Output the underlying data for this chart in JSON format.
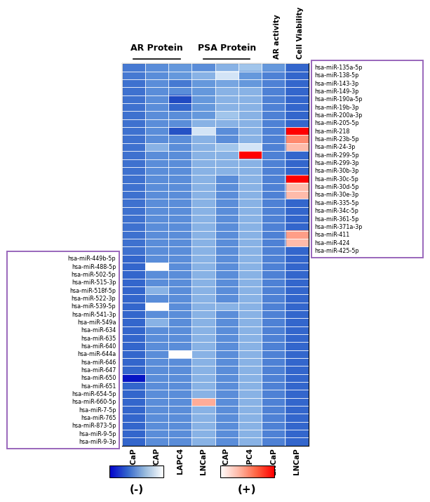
{
  "col_labels": [
    "LNCaP",
    "VCAP",
    "LAPC4",
    "LNCaP",
    "VCAP",
    "LAPC4",
    "LNCaP",
    "LNCaP"
  ],
  "right_mirnas": [
    "hsa-miR-135a-5p",
    "hsa-miR-138-5p",
    "hsa-miR-143-3p",
    "hsa-miR-149-3p",
    "hsa-miR-190a-5p",
    "hsa-miR-19b-3p",
    "hsa-miR-200a-3p",
    "hsa-miR-205-5p",
    "hsa-miR-218",
    "hsa-miR-23b-5p",
    "hsa-miR-24-3p",
    "hsa-miR-299-5p",
    "hsa-miR-299-3p",
    "hsa-miR-30b-3p",
    "hsa-miR-30c-5p",
    "hsa-miR-30d-5p",
    "hsa-miR-30e-3p",
    "hsa-miR-335-5p",
    "hsa-miR-34c-5p",
    "hsa-miR-361-5p",
    "hsa-miR-371a-3p",
    "hsa-miR-411",
    "hsa-miR-424",
    "hsa-miR-425-5p"
  ],
  "left_mirnas": [
    "hsa-miR-449b-5p",
    "hsa-miR-488-5p",
    "hsa-miR-502-5p",
    "hsa-miR-515-3p",
    "hsa-miR-518f-5p",
    "hsa-miR-522-3p",
    "hsa-miR-539-5p",
    "hsa-miR-541-3p",
    "hsa-miR-549a",
    "hsa-miR-634",
    "hsa-miR-635",
    "hsa-miR-640",
    "hsa-miR-644a",
    "hsa-miR-646",
    "hsa-miR-647",
    "hsa-miR-650",
    "hsa-miR-651",
    "hsa-miR-654-5p",
    "hsa-miR-660-5p",
    "hsa-miR-7-5p",
    "hsa-miR-765",
    "hsa-miR-873-5p",
    "hsa-miR-9-5p",
    "hsa-miR-9-3p"
  ],
  "matrix": [
    [
      0.3,
      0.35,
      0.38,
      0.35,
      0.42,
      0.45,
      0.38,
      0.25
    ],
    [
      0.3,
      0.35,
      0.38,
      0.42,
      0.48,
      0.38,
      0.32,
      0.25
    ],
    [
      0.28,
      0.35,
      0.3,
      0.38,
      0.4,
      0.38,
      0.32,
      0.25
    ],
    [
      0.28,
      0.35,
      0.35,
      0.38,
      0.42,
      0.42,
      0.32,
      0.25
    ],
    [
      0.28,
      0.35,
      0.18,
      0.38,
      0.42,
      0.42,
      0.32,
      0.25
    ],
    [
      0.28,
      0.35,
      0.25,
      0.38,
      0.42,
      0.42,
      0.32,
      0.25
    ],
    [
      0.28,
      0.35,
      0.35,
      0.38,
      0.45,
      0.42,
      0.32,
      0.25
    ],
    [
      0.28,
      0.35,
      0.35,
      0.42,
      0.42,
      0.42,
      0.32,
      0.25
    ],
    [
      0.28,
      0.35,
      0.2,
      0.48,
      0.35,
      0.42,
      0.32,
      1.0
    ],
    [
      0.28,
      0.35,
      0.35,
      0.42,
      0.35,
      0.42,
      0.32,
      0.65
    ],
    [
      0.28,
      0.42,
      0.35,
      0.42,
      0.45,
      0.48,
      0.32,
      0.58
    ],
    [
      0.28,
      0.35,
      0.35,
      0.42,
      0.42,
      1.0,
      0.32,
      0.25
    ],
    [
      0.28,
      0.35,
      0.35,
      0.42,
      0.42,
      0.42,
      0.32,
      0.25
    ],
    [
      0.28,
      0.35,
      0.35,
      0.42,
      0.42,
      0.42,
      0.32,
      0.25
    ],
    [
      0.28,
      0.35,
      0.35,
      0.42,
      0.35,
      0.42,
      0.32,
      1.0
    ],
    [
      0.28,
      0.35,
      0.35,
      0.42,
      0.35,
      0.42,
      0.32,
      0.58
    ],
    [
      0.28,
      0.35,
      0.35,
      0.42,
      0.35,
      0.42,
      0.32,
      0.58
    ],
    [
      0.28,
      0.35,
      0.35,
      0.42,
      0.35,
      0.42,
      0.32,
      0.25
    ],
    [
      0.28,
      0.35,
      0.35,
      0.42,
      0.35,
      0.42,
      0.32,
      0.25
    ],
    [
      0.28,
      0.35,
      0.35,
      0.42,
      0.35,
      0.42,
      0.32,
      0.25
    ],
    [
      0.28,
      0.35,
      0.35,
      0.42,
      0.35,
      0.42,
      0.32,
      0.25
    ],
    [
      0.28,
      0.35,
      0.35,
      0.42,
      0.35,
      0.42,
      0.32,
      0.62
    ],
    [
      0.28,
      0.35,
      0.35,
      0.42,
      0.35,
      0.42,
      0.32,
      0.58
    ],
    [
      0.28,
      0.35,
      0.35,
      0.42,
      0.35,
      0.42,
      0.32,
      0.25
    ],
    [
      0.25,
      0.35,
      0.35,
      0.42,
      0.35,
      0.42,
      0.32,
      0.25
    ],
    [
      0.25,
      0.5,
      0.35,
      0.42,
      0.35,
      0.42,
      0.32,
      0.25
    ],
    [
      0.25,
      0.35,
      0.35,
      0.42,
      0.35,
      0.42,
      0.32,
      0.25
    ],
    [
      0.25,
      0.35,
      0.35,
      0.42,
      0.35,
      0.42,
      0.32,
      0.25
    ],
    [
      0.25,
      0.42,
      0.35,
      0.42,
      0.35,
      0.42,
      0.32,
      0.25
    ],
    [
      0.25,
      0.35,
      0.35,
      0.42,
      0.35,
      0.42,
      0.32,
      0.25
    ],
    [
      0.25,
      0.5,
      0.35,
      0.42,
      0.42,
      0.42,
      0.32,
      0.25
    ],
    [
      0.25,
      0.35,
      0.35,
      0.42,
      0.35,
      0.42,
      0.32,
      0.25
    ],
    [
      0.25,
      0.42,
      0.35,
      0.42,
      0.35,
      0.42,
      0.32,
      0.25
    ],
    [
      0.25,
      0.35,
      0.35,
      0.42,
      0.35,
      0.42,
      0.32,
      0.25
    ],
    [
      0.25,
      0.35,
      0.35,
      0.42,
      0.35,
      0.42,
      0.32,
      0.25
    ],
    [
      0.25,
      0.35,
      0.35,
      0.42,
      0.35,
      0.42,
      0.32,
      0.25
    ],
    [
      0.25,
      0.35,
      0.5,
      0.42,
      0.35,
      0.42,
      0.32,
      0.25
    ],
    [
      0.25,
      0.35,
      0.35,
      0.42,
      0.35,
      0.42,
      0.32,
      0.25
    ],
    [
      0.25,
      0.35,
      0.35,
      0.42,
      0.35,
      0.42,
      0.32,
      0.25
    ],
    [
      0.05,
      0.35,
      0.35,
      0.42,
      0.35,
      0.42,
      0.32,
      0.25
    ],
    [
      0.25,
      0.35,
      0.35,
      0.42,
      0.35,
      0.42,
      0.32,
      0.25
    ],
    [
      0.25,
      0.35,
      0.35,
      0.42,
      0.35,
      0.42,
      0.32,
      0.25
    ],
    [
      0.25,
      0.35,
      0.35,
      0.6,
      0.35,
      0.42,
      0.32,
      0.25
    ],
    [
      0.25,
      0.35,
      0.35,
      0.42,
      0.35,
      0.42,
      0.32,
      0.25
    ],
    [
      0.25,
      0.35,
      0.35,
      0.42,
      0.35,
      0.42,
      0.32,
      0.25
    ],
    [
      0.25,
      0.35,
      0.35,
      0.42,
      0.35,
      0.42,
      0.32,
      0.25
    ],
    [
      0.25,
      0.35,
      0.35,
      0.42,
      0.35,
      0.42,
      0.32,
      0.25
    ],
    [
      0.25,
      0.35,
      0.35,
      0.42,
      0.35,
      0.42,
      0.32,
      0.25
    ]
  ],
  "box_color": "#9966bb",
  "cmap_stops": [
    [
      0.0,
      "#0000CC"
    ],
    [
      0.12,
      "#1133BB"
    ],
    [
      0.25,
      "#3366CC"
    ],
    [
      0.38,
      "#6699DD"
    ],
    [
      0.46,
      "#AACCEE"
    ],
    [
      0.5,
      "#FFFFFF"
    ],
    [
      0.58,
      "#FFBBAA"
    ],
    [
      0.7,
      "#FF6644"
    ],
    [
      1.0,
      "#FF0000"
    ]
  ]
}
